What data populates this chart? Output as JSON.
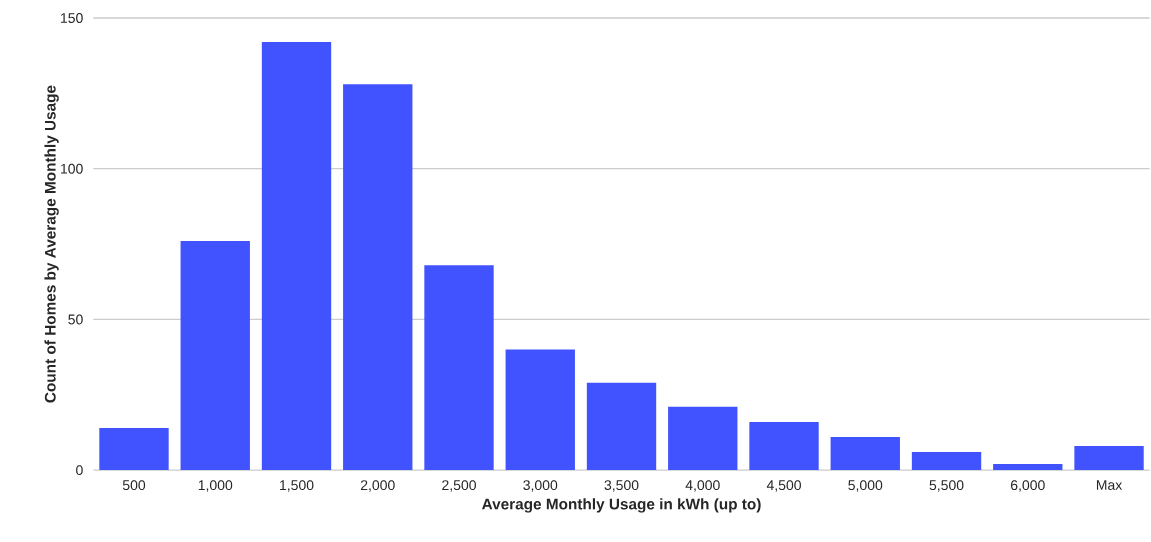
{
  "chart_data": {
    "type": "bar",
    "xlabel": "Average Monthly Usage in kWh (up to)",
    "ylabel": "Count of Homes by Average Monthly Usage",
    "categories": [
      "500",
      "1,000",
      "1,500",
      "2,000",
      "2,500",
      "3,000",
      "3,500",
      "4,000",
      "4,500",
      "5,000",
      "5,500",
      "6,000",
      "Max"
    ],
    "values": [
      14,
      76,
      142,
      128,
      68,
      40,
      29,
      21,
      16,
      11,
      6,
      2,
      8
    ],
    "color": "#4152ff",
    "ylim": [
      0,
      150
    ],
    "yticks": [
      0,
      50,
      100,
      150
    ],
    "grid": "y"
  }
}
